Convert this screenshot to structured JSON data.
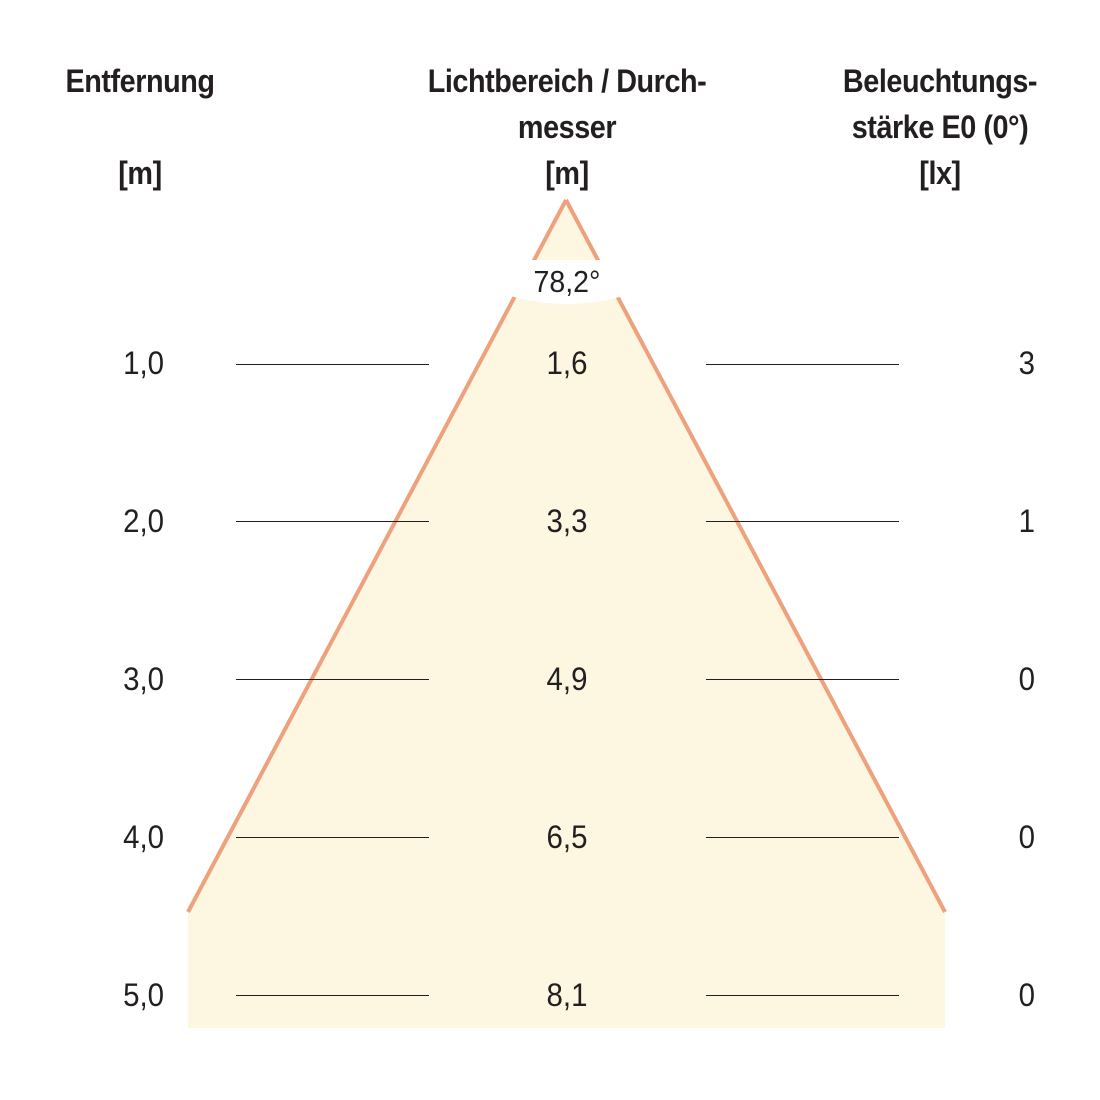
{
  "headers": {
    "distance": {
      "line1": "Entfernung",
      "unit": "[m]"
    },
    "diameter": {
      "line1": "Lichtbereich / Durch-",
      "line2": "messer",
      "unit": "[m]"
    },
    "illuminance": {
      "line1": "Beleuchtungs-",
      "line2": "stärke E0 (0°)",
      "unit": "[lx]"
    }
  },
  "beam_angle": "78,2°",
  "rows": [
    {
      "distance": "1,0",
      "diameter": "1,6",
      "illuminance": "3"
    },
    {
      "distance": "2,0",
      "diameter": "3,3",
      "illuminance": "1"
    },
    {
      "distance": "3,0",
      "diameter": "4,9",
      "illuminance": "0"
    },
    {
      "distance": "4,0",
      "diameter": "6,5",
      "illuminance": "0"
    },
    {
      "distance": "5,0",
      "diameter": "8,1",
      "illuminance": "0"
    }
  ],
  "colors": {
    "cone_fill": "#fdf6e1",
    "cone_edge": "#eda17d",
    "text": "#231f20",
    "rule": "#231f20"
  }
}
